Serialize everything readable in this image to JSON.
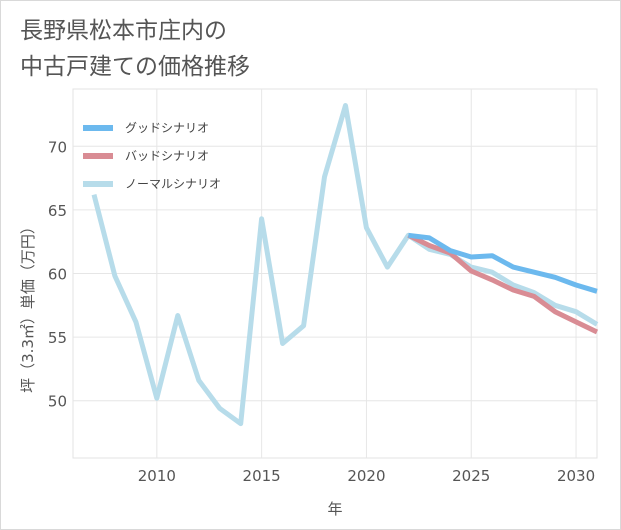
{
  "chart_data": {
    "type": "line",
    "title": "長野県松本市庄内の\n中古戸建ての価格推移",
    "xlabel": "年",
    "ylabel": "坪（3.3㎡）単価（万円）",
    "xlim": [
      2006,
      2031
    ],
    "ylim": [
      45.5,
      74.5
    ],
    "xticks": [
      2010,
      2015,
      2020,
      2025,
      2030
    ],
    "yticks": [
      50,
      55,
      60,
      65,
      70
    ],
    "grid": true,
    "legend_position": "top-left",
    "series": [
      {
        "name": "グッドシナリオ",
        "color": "#6cb9ee",
        "x": [
          2022,
          2023,
          2024,
          2025,
          2026,
          2027,
          2028,
          2029,
          2030,
          2031
        ],
        "y": [
          63.0,
          62.8,
          61.8,
          61.3,
          61.4,
          60.5,
          60.1,
          59.7,
          59.1,
          58.6
        ]
      },
      {
        "name": "バッドシナリオ",
        "color": "#d98c94",
        "x": [
          2022,
          2023,
          2024,
          2025,
          2026,
          2027,
          2028,
          2029,
          2030,
          2031
        ],
        "y": [
          63.0,
          62.2,
          61.6,
          60.2,
          59.5,
          58.7,
          58.2,
          57.0,
          56.2,
          55.4
        ]
      },
      {
        "name": "ノーマルシナリオ",
        "color": "#b7dcea",
        "x": [
          2007,
          2008,
          2009,
          2010,
          2011,
          2012,
          2013,
          2014,
          2015,
          2016,
          2017,
          2018,
          2019,
          2020,
          2021,
          2022,
          2023,
          2024,
          2025,
          2026,
          2027,
          2028,
          2029,
          2030,
          2031
        ],
        "y": [
          66.2,
          59.8,
          56.2,
          50.2,
          56.7,
          51.6,
          49.4,
          48.2,
          64.3,
          54.5,
          55.9,
          67.6,
          73.2,
          63.6,
          60.5,
          63.0,
          61.9,
          61.5,
          60.5,
          60.1,
          59.1,
          58.5,
          57.5,
          57.0,
          56.0
        ]
      }
    ]
  }
}
